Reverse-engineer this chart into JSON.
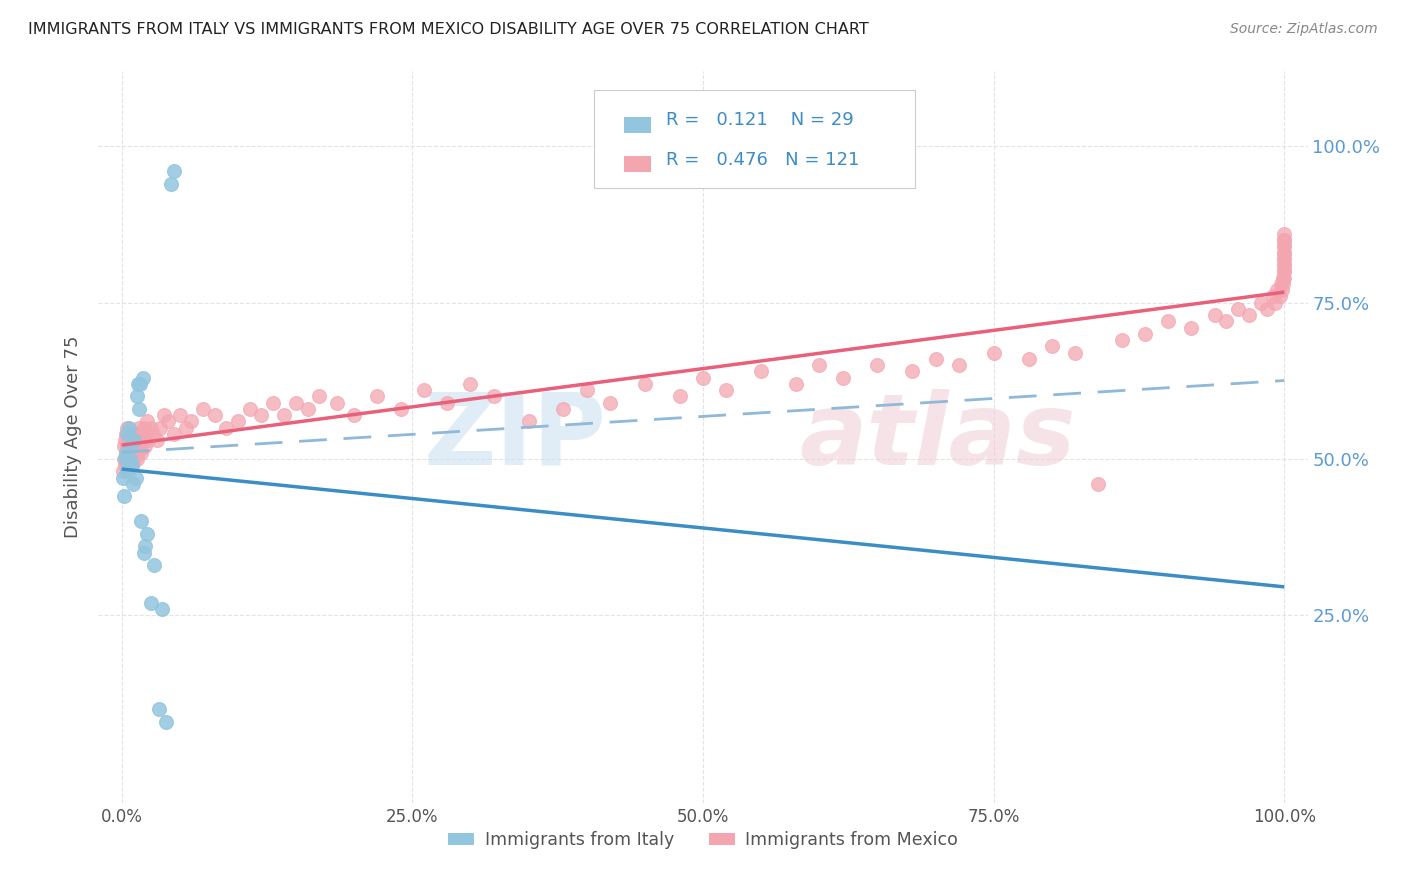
{
  "title": "IMMIGRANTS FROM ITALY VS IMMIGRANTS FROM MEXICO DISABILITY AGE OVER 75 CORRELATION CHART",
  "source": "Source: ZipAtlas.com",
  "ylabel": "Disability Age Over 75",
  "legend_italy": "Immigrants from Italy",
  "legend_mexico": "Immigrants from Mexico",
  "R_italy": 0.121,
  "N_italy": 29,
  "R_mexico": 0.476,
  "N_mexico": 121,
  "color_italy": "#92c5de",
  "color_mexico": "#f4a6b0",
  "color_italy_line": "#3a8dc5",
  "color_mexico_line": "#e8607a",
  "color_dashed": "#a0c4e8",
  "ytick_labels": [
    "25.0%",
    "50.0%",
    "75.0%",
    "100.0%"
  ],
  "ytick_values": [
    0.25,
    0.5,
    0.75,
    1.0
  ],
  "xtick_labels": [
    "0.0%",
    "25.0%",
    "50.0%",
    "75.0%",
    "100.0%"
  ],
  "xtick_values": [
    0.0,
    0.25,
    0.5,
    0.75,
    1.0
  ],
  "italy_x": [
    0.001,
    0.002,
    0.003,
    0.004,
    0.005,
    0.005,
    0.006,
    0.007,
    0.008,
    0.009,
    0.01,
    0.011,
    0.012,
    0.013,
    0.014,
    0.015,
    0.016,
    0.017,
    0.018,
    0.019,
    0.02,
    0.022,
    0.025,
    0.028,
    0.032,
    0.035,
    0.038,
    0.042,
    0.045
  ],
  "italy_y": [
    0.47,
    0.44,
    0.5,
    0.51,
    0.54,
    0.48,
    0.55,
    0.5,
    0.52,
    0.49,
    0.46,
    0.53,
    0.47,
    0.6,
    0.62,
    0.58,
    0.62,
    0.4,
    0.63,
    0.35,
    0.36,
    0.38,
    0.27,
    0.33,
    0.1,
    0.26,
    0.08,
    0.94,
    0.96
  ],
  "mexico_x": [
    0.001,
    0.002,
    0.002,
    0.003,
    0.003,
    0.004,
    0.004,
    0.005,
    0.005,
    0.005,
    0.006,
    0.006,
    0.007,
    0.007,
    0.008,
    0.008,
    0.009,
    0.009,
    0.01,
    0.01,
    0.011,
    0.011,
    0.012,
    0.012,
    0.013,
    0.013,
    0.014,
    0.014,
    0.015,
    0.015,
    0.016,
    0.016,
    0.017,
    0.018,
    0.019,
    0.02,
    0.021,
    0.022,
    0.023,
    0.025,
    0.027,
    0.03,
    0.033,
    0.036,
    0.04,
    0.045,
    0.05,
    0.055,
    0.06,
    0.07,
    0.08,
    0.09,
    0.1,
    0.11,
    0.12,
    0.13,
    0.14,
    0.15,
    0.16,
    0.17,
    0.185,
    0.2,
    0.22,
    0.24,
    0.26,
    0.28,
    0.3,
    0.32,
    0.35,
    0.38,
    0.4,
    0.42,
    0.45,
    0.48,
    0.5,
    0.52,
    0.55,
    0.58,
    0.6,
    0.62,
    0.65,
    0.68,
    0.7,
    0.72,
    0.75,
    0.78,
    0.8,
    0.82,
    0.84,
    0.86,
    0.88,
    0.9,
    0.92,
    0.94,
    0.95,
    0.96,
    0.97,
    0.98,
    0.985,
    0.99,
    0.992,
    0.994,
    0.996,
    0.997,
    0.998,
    0.999,
    0.9992,
    0.9994,
    0.9996,
    0.9998,
    0.9999,
    0.99995,
    0.99997,
    0.99998,
    0.99999,
    0.999992,
    0.999994,
    0.999996,
    0.999998,
    0.9999999,
    0.99999992
  ],
  "mexico_y": [
    0.48,
    0.5,
    0.52,
    0.49,
    0.53,
    0.51,
    0.54,
    0.5,
    0.52,
    0.55,
    0.48,
    0.51,
    0.53,
    0.5,
    0.52,
    0.54,
    0.49,
    0.53,
    0.51,
    0.54,
    0.5,
    0.52,
    0.51,
    0.53,
    0.5,
    0.52,
    0.54,
    0.51,
    0.53,
    0.55,
    0.52,
    0.54,
    0.51,
    0.53,
    0.55,
    0.52,
    0.54,
    0.56,
    0.53,
    0.55,
    0.54,
    0.53,
    0.55,
    0.57,
    0.56,
    0.54,
    0.57,
    0.55,
    0.56,
    0.58,
    0.57,
    0.55,
    0.56,
    0.58,
    0.57,
    0.59,
    0.57,
    0.59,
    0.58,
    0.6,
    0.59,
    0.57,
    0.6,
    0.58,
    0.61,
    0.59,
    0.62,
    0.6,
    0.56,
    0.58,
    0.61,
    0.59,
    0.62,
    0.6,
    0.63,
    0.61,
    0.64,
    0.62,
    0.65,
    0.63,
    0.65,
    0.64,
    0.66,
    0.65,
    0.67,
    0.66,
    0.68,
    0.67,
    0.46,
    0.69,
    0.7,
    0.72,
    0.71,
    0.73,
    0.72,
    0.74,
    0.73,
    0.75,
    0.74,
    0.76,
    0.75,
    0.77,
    0.76,
    0.78,
    0.77,
    0.79,
    0.78,
    0.8,
    0.79,
    0.81,
    0.8,
    0.82,
    0.81,
    0.83,
    0.82,
    0.84,
    0.83,
    0.85,
    0.84,
    0.86,
    0.85
  ]
}
